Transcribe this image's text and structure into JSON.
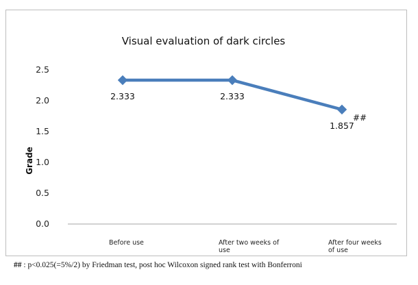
{
  "chart_data": {
    "type": "line",
    "title": "Visual evaluation of dark circles",
    "ylabel": "Grade",
    "xlabel": "",
    "ylim": [
      0,
      2.5
    ],
    "yticks": [
      "0.0",
      "0.5",
      "1.0",
      "1.5",
      "2.0",
      "2.5"
    ],
    "categories": [
      [
        "Before use"
      ],
      [
        "After two weeks of",
        "use"
      ],
      [
        "After four weeks",
        "of use"
      ]
    ],
    "series": [
      {
        "values": [
          2.333,
          2.333,
          1.857
        ],
        "labels": [
          "2.333",
          "2.333",
          "1.857"
        ],
        "color": "#4a7ebb"
      }
    ],
    "annotation": "##",
    "grid": false,
    "legend": "none"
  },
  "footnote": {
    "mark": "##",
    "text": " : p<0.025(=5%/2) by Friedman test, post hoc Wilcoxon signed rank test with Bonferroni"
  }
}
